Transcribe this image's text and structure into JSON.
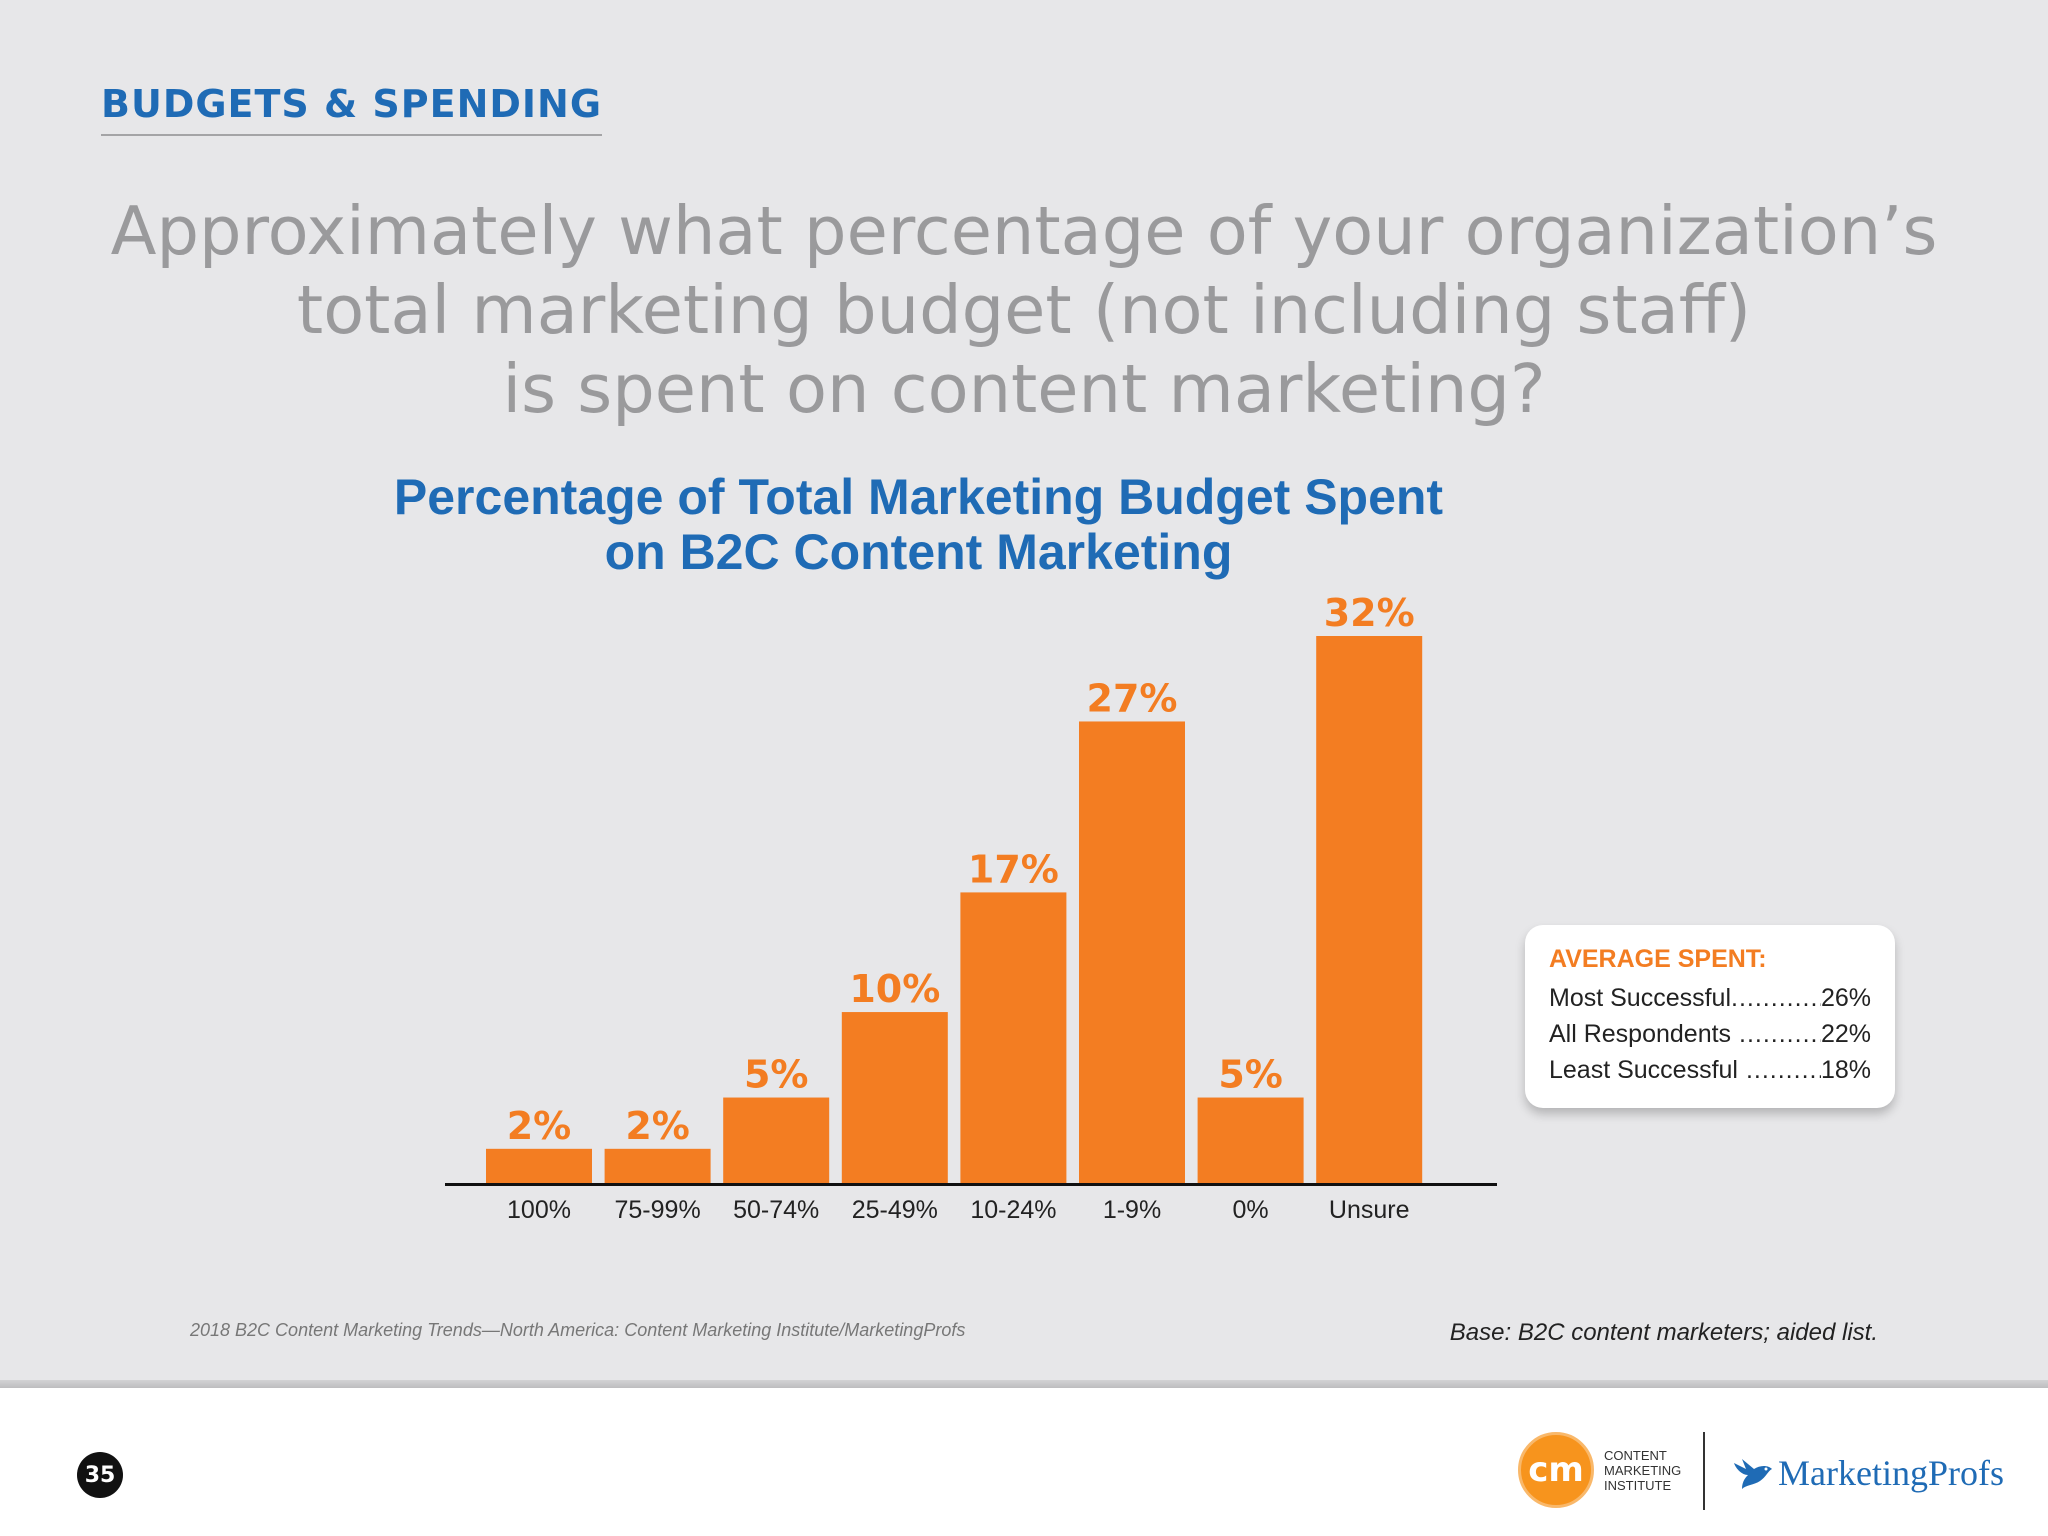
{
  "header": {
    "section_label": "BUDGETS & SPENDING"
  },
  "question": {
    "line1": "Approximately what percentage of your organization’s",
    "line2": "total marketing budget (not including staff)",
    "line3": "is spent on content marketing?"
  },
  "chart_data": {
    "type": "bar",
    "title_line1": "Percentage of Total Marketing Budget Spent",
    "title_line2": "on B2C Content Marketing",
    "categories": [
      "100%",
      "75-99%",
      "50-74%",
      "25-49%",
      "10-24%",
      "1-9%",
      "0%",
      "Unsure"
    ],
    "values": [
      2,
      2,
      5,
      10,
      17,
      27,
      5,
      32
    ],
    "value_labels": [
      "2%",
      "2%",
      "5%",
      "10%",
      "17%",
      "27%",
      "5%",
      "32%"
    ],
    "ylim": [
      0,
      32
    ],
    "grid": false,
    "bar_color": "#f37d22"
  },
  "average_box": {
    "title": "AVERAGE SPENT:",
    "rows": [
      {
        "label": "Most Successful",
        "value": "26%"
      },
      {
        "label": "All Respondents",
        "value": "22%"
      },
      {
        "label": "Least Successful",
        "value": "18%"
      }
    ]
  },
  "footer": {
    "source": "2018 B2C Content Marketing Trends—North America: Content Marketing Institute/MarketingProfs",
    "base_note": "Base: B2C content marketers; aided list.",
    "page_number": "35"
  },
  "logos": {
    "cmi_mark": "cm",
    "cmi_line1": "CONTENT",
    "cmi_line2": "MARKETING",
    "cmi_line3": "INSTITUTE",
    "mp_name": "MarketingProfs"
  },
  "colors": {
    "accent_blue": "#1f6bb5",
    "accent_orange": "#f37d22",
    "question_gray": "#9a9a9c"
  }
}
